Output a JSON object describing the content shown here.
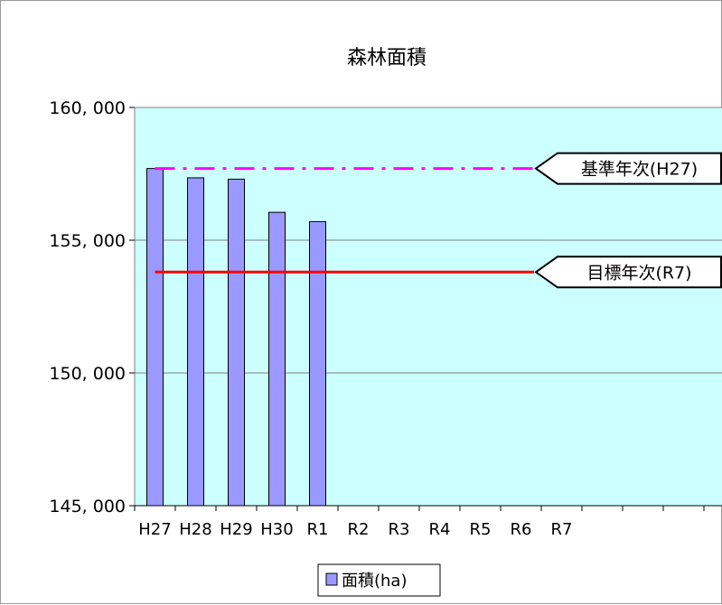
{
  "chart_data": {
    "type": "bar",
    "title": "森林面積",
    "categories": [
      "H27",
      "H28",
      "H29",
      "H30",
      "R1",
      "R2",
      "R3",
      "R4",
      "R5",
      "R6",
      "R7"
    ],
    "series": [
      {
        "name": "面積(ha)",
        "values": [
          157700,
          157350,
          157300,
          156050,
          155700,
          null,
          null,
          null,
          null,
          null,
          null
        ],
        "color": "#9999ff"
      }
    ],
    "ylim": [
      145000,
      160000
    ],
    "yticks": [
      145000,
      150000,
      155000,
      160000
    ],
    "ytick_labels": [
      "145, 000",
      "150, 000",
      "155, 000",
      "160, 000"
    ],
    "reference_lines": [
      {
        "label": "基準年次(H27)",
        "value": 157700,
        "color": "#ff00ff",
        "style": "dash-dot"
      },
      {
        "label": "目標年次(R7)",
        "value": 153800,
        "color": "#ff0000",
        "style": "solid"
      }
    ],
    "plot_background": "#ccffff",
    "grid": true,
    "legend_position": "bottom"
  }
}
